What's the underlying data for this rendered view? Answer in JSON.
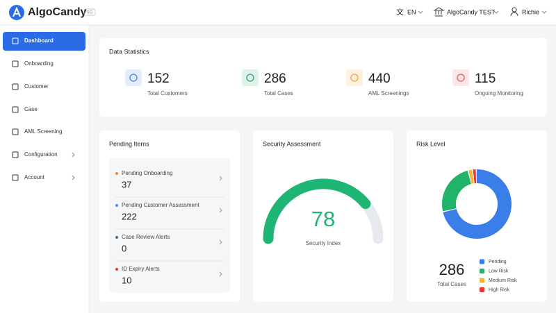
{
  "header": {
    "logo": "AlgoCandy",
    "region": "SG",
    "language": "EN",
    "organization": "AlgoCandy TEST",
    "user": "Richie"
  },
  "sidebar": {
    "active": 0,
    "items": [
      {
        "label": "Dashboard",
        "expandable": false
      },
      {
        "label": "Onboarding",
        "expandable": false
      },
      {
        "label": "Customer",
        "expandable": false
      },
      {
        "label": "Case",
        "expandable": false
      },
      {
        "label": "AML Screening",
        "expandable": false
      },
      {
        "label": "Configuration",
        "expandable": true
      },
      {
        "label": "Account",
        "expandable": true
      }
    ]
  },
  "statistics": {
    "title": "Data Statistics",
    "items": [
      {
        "value": 152,
        "label": "Total Customers",
        "color": "#3b82f6"
      },
      {
        "value": 286,
        "label": "Total Cases",
        "color": "#22a36a"
      },
      {
        "value": 440,
        "label": "AML Screenings",
        "color": "#f0a030"
      },
      {
        "value": 115,
        "label": "Ongoing Monitoring",
        "color": "#e85656"
      }
    ]
  },
  "pending": {
    "title": "Pending Items",
    "items": [
      {
        "label": "Pending Onboarding",
        "value": 37,
        "color": "#f5832a"
      },
      {
        "label": "Pending Customer Assessment",
        "value": 222,
        "color": "#4a8cf0"
      },
      {
        "label": "Case Review Alerts",
        "value": 0,
        "color": "#5a6378"
      },
      {
        "label": "ID Expiry Alerts",
        "value": 10,
        "color": "#e53935"
      }
    ]
  },
  "security": {
    "title": "Security Assessment",
    "value": 78,
    "label": "Security Index",
    "range": [
      0,
      100
    ],
    "color": "#1fb574"
  },
  "risk": {
    "title": "Risk Level",
    "total": 286,
    "total_label": "Total Cases",
    "segments": [
      {
        "name": "Pending",
        "value": 205,
        "color": "#3b7de9"
      },
      {
        "name": "Low Risk",
        "value": 70,
        "color": "#22b36b"
      },
      {
        "name": "Medium Risk",
        "value": 6,
        "color": "#f4b63a"
      },
      {
        "name": "High Risk",
        "value": 5,
        "color": "#e53935"
      }
    ]
  }
}
